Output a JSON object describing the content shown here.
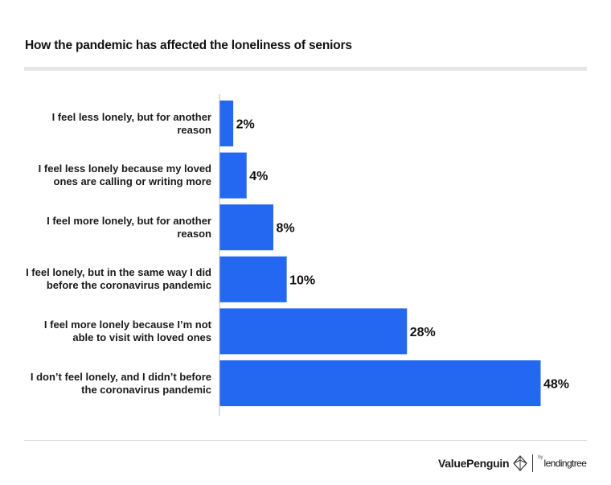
{
  "title": "How the pandemic has affected the loneliness of seniors",
  "colors": {
    "bar": "#2468f2",
    "axis": "#bdbdbd",
    "text": "#111111"
  },
  "chart_data": {
    "type": "bar",
    "orientation": "horizontal",
    "categories": [
      [
        "I feel less lonely, but for another",
        "reason"
      ],
      [
        "I feel less lonely because my loved",
        "ones are calling or writing more"
      ],
      [
        "I feel more lonely, but for another",
        "reason"
      ],
      [
        "I feel lonely, but in the same way I did",
        "before the coronavirus pandemic"
      ],
      [
        "I feel more lonely because I’m not",
        "able to visit with loved ones"
      ],
      [
        "I don’t feel lonely, and I didn’t before",
        "the coronavirus pandemic"
      ]
    ],
    "values": [
      2,
      4,
      8,
      10,
      28,
      48
    ],
    "value_labels": [
      "2%",
      "4%",
      "8%",
      "10%",
      "28%",
      "48%"
    ],
    "xlim": [
      0,
      48
    ],
    "grid": false,
    "legend": "none"
  },
  "footer": {
    "brand": "ValuePenguin",
    "by": "by",
    "partner": "lendingtree"
  }
}
